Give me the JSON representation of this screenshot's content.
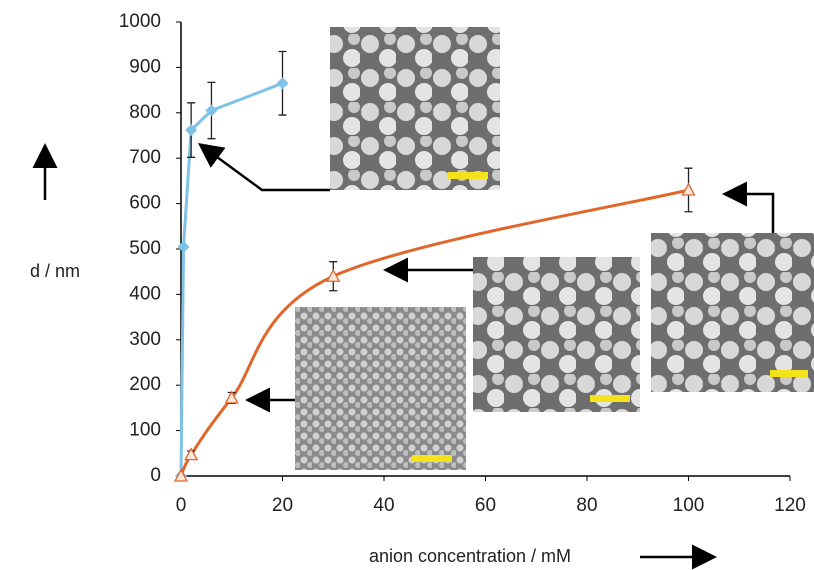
{
  "chart_data": {
    "type": "line",
    "x_label": "anion concentration / mM",
    "y_label": "d / nm",
    "xlim": [
      0,
      120
    ],
    "xticks": [
      0,
      20,
      40,
      60,
      80,
      100,
      120
    ],
    "ylim": [
      0,
      1000
    ],
    "yticks": [
      0,
      100,
      200,
      300,
      400,
      500,
      600,
      700,
      800,
      900,
      1000
    ],
    "series": [
      {
        "color": "#7ec3e6",
        "marker": "diamond",
        "smooth": false,
        "x": [
          0,
          0.5,
          2,
          6,
          20
        ],
        "values": [
          0,
          505,
          762,
          805,
          865
        ],
        "errors": [
          null,
          null,
          60,
          62,
          70
        ]
      },
      {
        "color": "#e0662a",
        "marker": "triangle",
        "smooth": true,
        "x": [
          0,
          2,
          10,
          30,
          100
        ],
        "values": [
          0,
          47,
          172,
          440,
          630
        ],
        "errors": [
          null,
          8,
          12,
          32,
          48
        ]
      }
    ]
  }
}
